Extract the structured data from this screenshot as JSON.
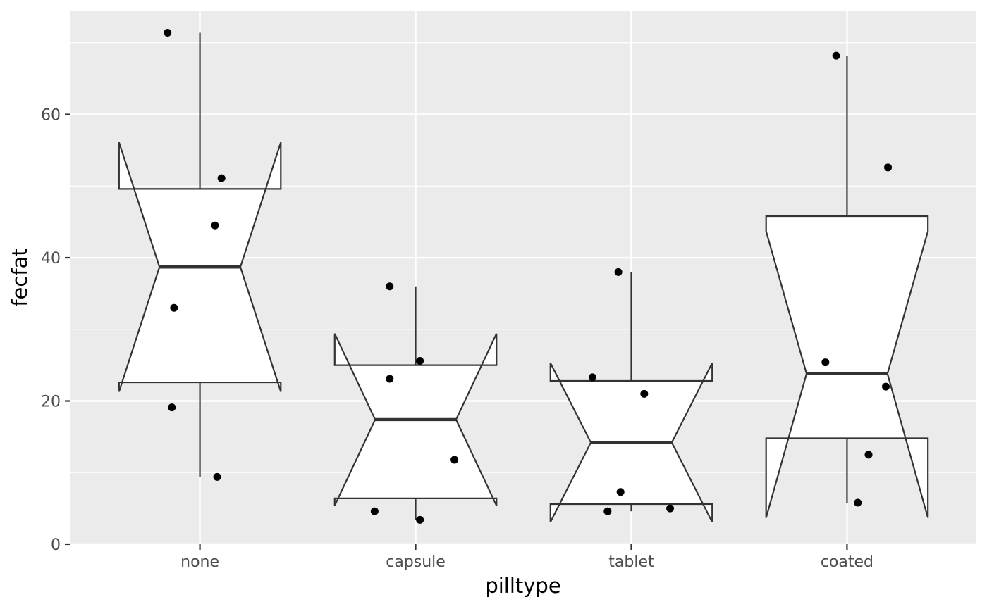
{
  "chart_data": {
    "type": "boxplot",
    "notched": true,
    "xlabel": "pilltype",
    "ylabel": "fecfat",
    "categories": [
      "none",
      "capsule",
      "tablet",
      "coated"
    ],
    "ylim": [
      0,
      74.5
    ],
    "yticks": [
      0,
      20,
      40,
      60
    ],
    "grid": true,
    "background": "#ebebeb",
    "grid_color": "#ffffff",
    "box_stroke": "#333333",
    "point_color": "#000000",
    "boxes": [
      {
        "category": "none",
        "lower_whisker": 9.4,
        "q1": 22.6,
        "median": 38.7,
        "q3": 49.6,
        "upper_whisker": 71.4,
        "notch_low": 21.3,
        "notch_high": 56.1
      },
      {
        "category": "capsule",
        "lower_whisker": 3.4,
        "q1": 6.4,
        "median": 17.4,
        "q3": 25.0,
        "upper_whisker": 36.0,
        "notch_low": 5.4,
        "notch_high": 29.4
      },
      {
        "category": "tablet",
        "lower_whisker": 4.6,
        "q1": 5.6,
        "median": 14.2,
        "q3": 22.8,
        "upper_whisker": 38.0,
        "notch_low": 3.1,
        "notch_high": 25.3
      },
      {
        "category": "coated",
        "lower_whisker": 5.8,
        "q1": 14.8,
        "median": 23.8,
        "q3": 45.8,
        "upper_whisker": 68.2,
        "notch_low": 3.7,
        "notch_high": 43.7
      }
    ],
    "points": [
      {
        "category": "none",
        "jitter": -0.15,
        "y": 71.4
      },
      {
        "category": "none",
        "jitter": 0.1,
        "y": 51.1
      },
      {
        "category": "none",
        "jitter": 0.07,
        "y": 44.5
      },
      {
        "category": "none",
        "jitter": -0.12,
        "y": 33.0
      },
      {
        "category": "none",
        "jitter": -0.13,
        "y": 19.1
      },
      {
        "category": "none",
        "jitter": 0.08,
        "y": 9.4
      },
      {
        "category": "capsule",
        "jitter": -0.12,
        "y": 36.0
      },
      {
        "category": "capsule",
        "jitter": 0.02,
        "y": 25.6
      },
      {
        "category": "capsule",
        "jitter": -0.12,
        "y": 23.1
      },
      {
        "category": "capsule",
        "jitter": 0.18,
        "y": 11.8
      },
      {
        "category": "capsule",
        "jitter": -0.19,
        "y": 4.6
      },
      {
        "category": "capsule",
        "jitter": 0.02,
        "y": 3.4
      },
      {
        "category": "tablet",
        "jitter": -0.06,
        "y": 38.0
      },
      {
        "category": "tablet",
        "jitter": -0.18,
        "y": 23.3
      },
      {
        "category": "tablet",
        "jitter": 0.06,
        "y": 21.0
      },
      {
        "category": "tablet",
        "jitter": -0.05,
        "y": 7.3
      },
      {
        "category": "tablet",
        "jitter": 0.18,
        "y": 5.0
      },
      {
        "category": "tablet",
        "jitter": -0.11,
        "y": 4.6
      },
      {
        "category": "coated",
        "jitter": -0.05,
        "y": 68.2
      },
      {
        "category": "coated",
        "jitter": 0.19,
        "y": 52.6
      },
      {
        "category": "coated",
        "jitter": -0.1,
        "y": 25.4
      },
      {
        "category": "coated",
        "jitter": 0.18,
        "y": 22.0
      },
      {
        "category": "coated",
        "jitter": 0.1,
        "y": 12.5
      },
      {
        "category": "coated",
        "jitter": 0.05,
        "y": 5.8
      }
    ]
  }
}
